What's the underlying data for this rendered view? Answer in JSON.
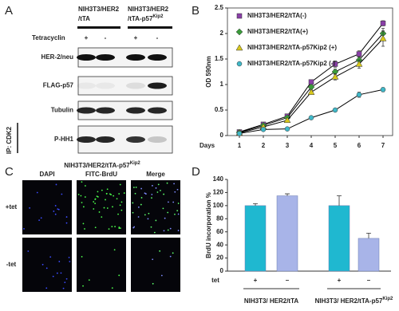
{
  "panel_a": {
    "letter": "A",
    "col1_line1": "NIH3T3/HER2",
    "col1_line2": "/tTA",
    "col2_line1": "NIH3T3/HER2",
    "col2_line2": "/tTA-p57",
    "col2_sup": "Kip2",
    "treatment_label": "Tetracyclin",
    "treatments": [
      "+",
      "-",
      "+",
      "-"
    ],
    "rows": [
      "HER-2/neu",
      "FLAG-p57",
      "Tubulin",
      "P-HH1"
    ],
    "ip_label": "IP: CDK2"
  },
  "panel_c": {
    "letter": "C",
    "title": "NIH3T3/HER2/tTA-p57",
    "title_sup": "Kip2",
    "columns": [
      "DAPI",
      "FITC-BrdU",
      "Merge"
    ],
    "rows": [
      "+tet",
      "-tet"
    ]
  },
  "panel_b_letter": "B",
  "panel_d_letter": "D",
  "chart_data": [
    {
      "type": "line",
      "y_label": "OD 590nm",
      "x_label": "Days",
      "x": [
        1,
        2,
        3,
        4,
        5,
        6,
        7
      ],
      "xlim": [
        0.5,
        7.4
      ],
      "xticks": [
        1,
        2,
        3,
        4,
        5,
        6,
        7
      ],
      "ylim": [
        0,
        2.5
      ],
      "yticks": [
        0,
        0.5,
        1,
        1.5,
        2,
        2.5
      ],
      "line_color": "#000000",
      "series": [
        {
          "name": "NIH3T3/HER2/tTA(-)",
          "color": "#8a3fa8",
          "marker": "square",
          "values": [
            0.07,
            0.22,
            0.38,
            1.05,
            1.4,
            1.6,
            2.2
          ],
          "errors": [
            0.01,
            0.02,
            0.03,
            0.04,
            0.06,
            0.06,
            0.05
          ]
        },
        {
          "name": "NIH3T3/HER2/tTA(+)",
          "color": "#3a9a3a",
          "marker": "diamond",
          "values": [
            0.06,
            0.2,
            0.35,
            0.95,
            1.25,
            1.48,
            2.0
          ],
          "errors": [
            0.01,
            0.02,
            0.03,
            0.04,
            0.05,
            0.06,
            0.1
          ]
        },
        {
          "name": "NIH3T3/HER2/tTA-p57Kip2 (+)",
          "color": "#d8c81c",
          "marker": "triangle",
          "values": [
            0.05,
            0.17,
            0.3,
            0.85,
            1.15,
            1.4,
            1.9
          ],
          "errors": [
            0.01,
            0.02,
            0.03,
            0.04,
            0.06,
            0.08,
            0.15
          ]
        },
        {
          "name": "NIH3T3/HER2/tTA-p57Kip2 (-)",
          "color": "#40b8c8",
          "marker": "circle",
          "values": [
            0.04,
            0.12,
            0.13,
            0.35,
            0.5,
            0.8,
            0.9
          ],
          "errors": [
            0.01,
            0.01,
            0.02,
            0.02,
            0.03,
            0.05,
            0.04
          ]
        }
      ]
    },
    {
      "type": "bar",
      "y_label": "BrdU incorporation %",
      "x_label": "tet",
      "categories": [
        "+",
        "–",
        "+",
        "–"
      ],
      "values": [
        100,
        115,
        100,
        50
      ],
      "errors": [
        3,
        3,
        15,
        8
      ],
      "colors": [
        "#1fb8d0",
        "#a8b4e8",
        "#1fb8d0",
        "#a8b4e8"
      ],
      "ylim": [
        0,
        140
      ],
      "yticks": [
        0,
        20,
        40,
        60,
        80,
        100,
        120,
        140
      ],
      "groups": [
        {
          "label": "NIH3T3/ HER2/tTA"
        },
        {
          "label": "NIH3T3/ HER2/tTA-p57",
          "sup": "Kip2"
        }
      ]
    }
  ]
}
